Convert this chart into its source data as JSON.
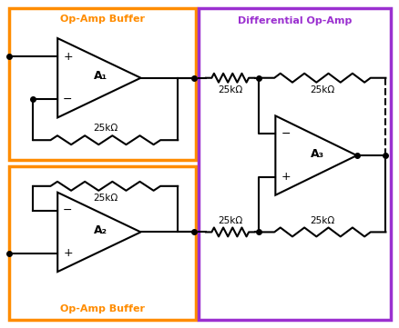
{
  "orange_color": "#FF8C00",
  "purple_color": "#9B30D0",
  "black": "#000000",
  "label_A1": "A₁",
  "label_A2": "A₂",
  "label_A3": "A₃",
  "resistor_label": "25kΩ",
  "box1_title": "Op-Amp Buffer",
  "box2_title": "Op-Amp Buffer",
  "diff_title": "Differential Op-Amp",
  "bg_color": "#ffffff"
}
